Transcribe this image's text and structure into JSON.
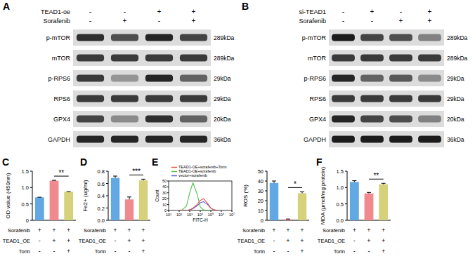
{
  "blots": [
    {
      "label": "A",
      "header": [
        {
          "name": "TEAD1-oe",
          "values": [
            "-",
            "-",
            "+",
            "+"
          ]
        },
        {
          "name": "Sorafenib",
          "values": [
            "-",
            "+",
            "-",
            "+"
          ]
        }
      ],
      "rows": [
        {
          "name": "p-mTOR",
          "kda": "289kDa",
          "bands": [
            0.85,
            0.7,
            0.9,
            0.75
          ]
        },
        {
          "name": "mTOR",
          "kda": "289kDa",
          "bands": [
            0.8,
            0.8,
            0.8,
            0.8
          ]
        },
        {
          "name": "p-RPS6",
          "kda": "29kDa",
          "bands": [
            0.8,
            0.35,
            0.9,
            0.6
          ]
        },
        {
          "name": "RPS6",
          "kda": "29kDa",
          "bands": [
            0.8,
            0.8,
            0.8,
            0.8
          ]
        },
        {
          "name": "GPX4",
          "kda": "20kDa",
          "bands": [
            0.75,
            0.4,
            0.85,
            0.6
          ]
        },
        {
          "name": "GAPDH",
          "kda": "36kDa",
          "bands": [
            0.9,
            0.9,
            0.9,
            0.9
          ]
        }
      ]
    },
    {
      "label": "B",
      "header": [
        {
          "name": "si-TEAD1",
          "values": [
            "-",
            "+",
            "-",
            "+"
          ]
        },
        {
          "name": "Sorafenib",
          "values": [
            "-",
            "-",
            "+",
            "+"
          ]
        }
      ],
      "rows": [
        {
          "name": "p-mTOR",
          "kda": "289kDa",
          "bands": [
            0.95,
            0.75,
            0.7,
            0.45
          ]
        },
        {
          "name": "mTOR",
          "kda": "289kDa",
          "bands": [
            0.8,
            0.8,
            0.8,
            0.8
          ]
        },
        {
          "name": "p-RPS6",
          "kda": "29kDa",
          "bands": [
            0.9,
            0.6,
            0.65,
            0.4
          ]
        },
        {
          "name": "RPS6",
          "kda": "29kDa",
          "bands": [
            0.8,
            0.8,
            0.8,
            0.8
          ]
        },
        {
          "name": "GPX4",
          "kda": "20kDa",
          "bands": [
            0.9,
            0.75,
            0.7,
            0.45
          ]
        },
        {
          "name": "GAPDH",
          "kda": "36kDa",
          "bands": [
            0.95,
            0.95,
            0.95,
            0.95
          ]
        }
      ]
    }
  ],
  "chart_data": [
    {
      "type": "bar",
      "title": "C",
      "ylabel": "OD value (450nm)",
      "categories": [
        null,
        null,
        null
      ],
      "values": [
        0.7,
        1.21,
        0.87
      ],
      "errors": [
        0.005,
        0.01,
        0.005
      ],
      "colors": [
        "#62a8e2",
        "#f08a8e",
        "#d6d27c"
      ],
      "ylim": [
        0,
        1.5
      ],
      "yticks": [
        0,
        0.5,
        {
          "value": 1,
          "label": "1.0"
        },
        1.5
      ],
      "annotations": [
        {
          "text": "**",
          "from": 1,
          "to": 2
        }
      ],
      "conditions": [
        {
          "name": "Sorafenib",
          "values": [
            "+",
            "+",
            "+"
          ]
        },
        {
          "name": "TEAD1_OE",
          "values": [
            "-",
            "+",
            "+"
          ]
        },
        {
          "name": "Torin",
          "values": [
            "-",
            "-",
            "+"
          ]
        }
      ]
    },
    {
      "type": "bar",
      "title": "D",
      "ylabel": "Fe2+ (ug/ml)",
      "categories": [
        null,
        null,
        null
      ],
      "values": [
        0.69,
        0.34,
        0.65
      ],
      "errors": [
        0.03,
        0.04,
        0.02
      ],
      "colors": [
        "#62a8e2",
        "#f08a8e",
        "#d6d27c"
      ],
      "ylim": [
        0,
        0.8
      ],
      "yticks": [
        {
          "value": 0,
          "label": "0.0"
        },
        0.2,
        0.4,
        0.6,
        0.8
      ],
      "annotations": [
        {
          "text": "***",
          "from": 1,
          "to": 2
        }
      ],
      "conditions": [
        {
          "name": "Sorafenib",
          "values": [
            "+",
            "+",
            "+"
          ]
        },
        {
          "name": "TEAD1_OE",
          "values": [
            "-",
            "+",
            "+"
          ]
        },
        {
          "name": "Torin",
          "values": [
            "-",
            "-",
            "+"
          ]
        }
      ]
    },
    {
      "type": "line",
      "title": "E",
      "xlabel": "FITC-H",
      "ylabel": "Count",
      "log": "x",
      "legend": "top",
      "x": [
        100,
        200,
        500,
        1000,
        2000,
        5000,
        10000,
        20000,
        50000,
        100000,
        200000,
        500000
      ],
      "series": [
        {
          "name": "TEAD1-OE+sorafenib+Torin",
          "color": "#e8504f",
          "values": [
            0,
            0,
            0,
            1,
            4,
            10,
            17,
            20,
            12,
            4,
            1,
            0
          ]
        },
        {
          "name": "TEAD1-OE+sorafenib",
          "color": "#4cc24c",
          "values": [
            0,
            1,
            8,
            30,
            47,
            28,
            6,
            1,
            0,
            0,
            0,
            0
          ]
        },
        {
          "name": "vector+sorafenib",
          "color": "#5a5ad8",
          "values": [
            0,
            0,
            0,
            1,
            3,
            8,
            13,
            15,
            10,
            4,
            1,
            0
          ]
        }
      ],
      "xlim": [
        10,
        10000000
      ],
      "xticks": [
        {
          "value": 10,
          "label": "10¹"
        },
        {
          "value": 100,
          "label": "10²"
        },
        {
          "value": 1000,
          "label": "10³"
        },
        {
          "value": 10000,
          "label": "10⁴"
        },
        {
          "value": 100000,
          "label": "10⁵"
        },
        {
          "value": 1000000,
          "label": "10⁶"
        },
        {
          "value": 10000000,
          "label": "10⁷"
        }
      ],
      "ylim": [
        0,
        50
      ],
      "yticks": [
        0,
        10,
        20,
        30,
        40,
        50
      ]
    },
    {
      "type": "bar",
      "ylabel": "ROS (%)",
      "categories": [
        null,
        null,
        null
      ],
      "values": [
        38,
        1,
        27.5
      ],
      "errors": [
        2,
        0.3,
        1.5
      ],
      "colors": [
        "#62a8e2",
        "#f08a8e",
        "#d6d27c"
      ],
      "ylim": [
        0,
        50
      ],
      "yticks": [
        0,
        10,
        20,
        30,
        40,
        50
      ],
      "annotations": [
        {
          "text": "*",
          "from": 1,
          "to": 2
        }
      ],
      "conditions": [
        {
          "name": "Sorafenib",
          "values": [
            "+",
            "+",
            "+"
          ]
        },
        {
          "name": "TEAD1_OE",
          "values": [
            "-",
            "+",
            "+"
          ]
        },
        {
          "name": "Torin",
          "values": [
            "-",
            "-",
            "+"
          ]
        }
      ]
    },
    {
      "type": "bar",
      "title": "F",
      "ylabel": "MDA (μmol/mg protein)",
      "categories": [
        null,
        null,
        null
      ],
      "values": [
        1.17,
        0.82,
        1.1
      ],
      "errors": [
        0.04,
        0.03,
        0.03
      ],
      "colors": [
        "#62a8e2",
        "#f08a8e",
        "#d6d27c"
      ],
      "ylim": [
        0,
        1.5
      ],
      "yticks": [
        {
          "value": 0,
          "label": "0.0"
        },
        0.5,
        {
          "value": 1,
          "label": "1.0"
        },
        1.5
      ],
      "annotations": [
        {
          "text": "**",
          "from": 1,
          "to": 2
        }
      ],
      "conditions": [
        {
          "name": "Sorafenib",
          "values": [
            "+",
            "+",
            "+"
          ]
        },
        {
          "name": "TEAD1_OE",
          "values": [
            "-",
            "+",
            "+"
          ]
        },
        {
          "name": "Torin",
          "values": [
            "-",
            "-",
            "+"
          ]
        }
      ]
    }
  ]
}
